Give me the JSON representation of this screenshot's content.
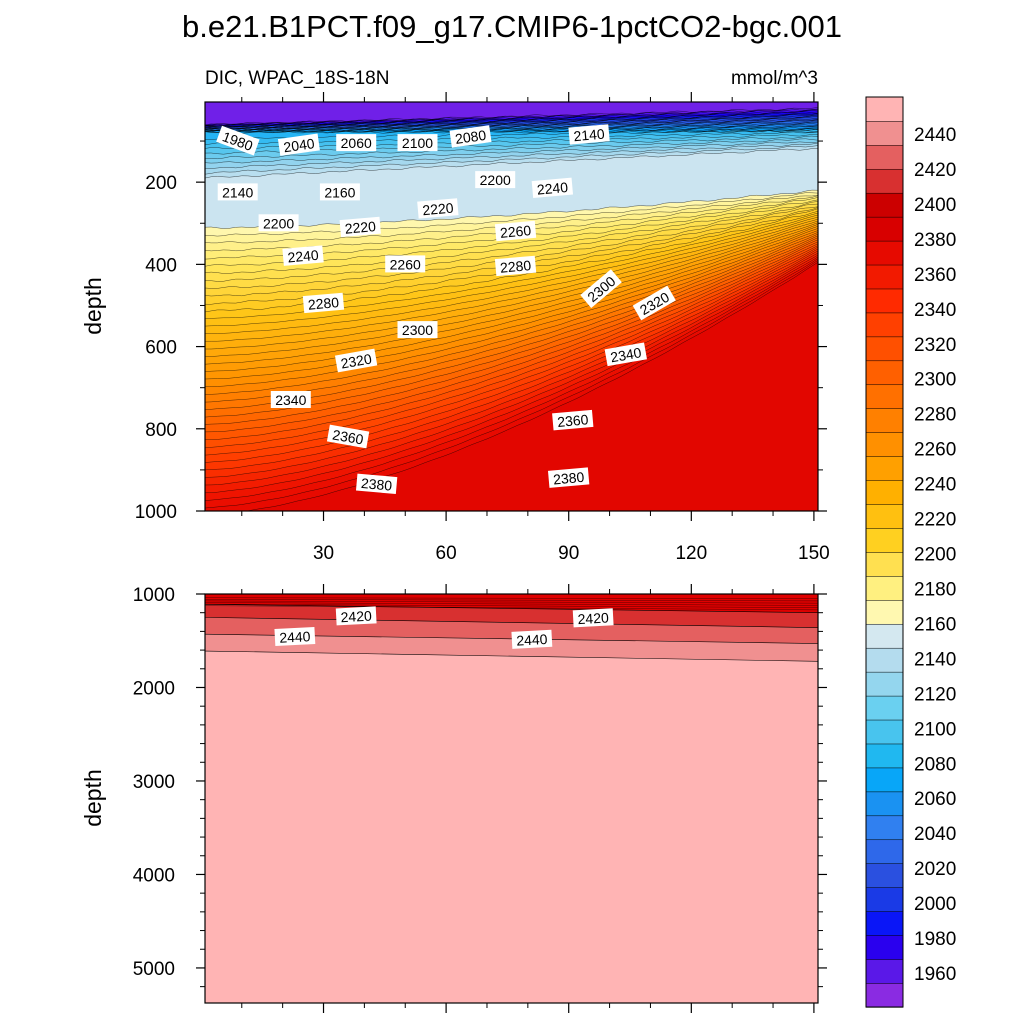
{
  "title": "b.e21.B1PCT.f09_g17.CMIP6-1pctCO2-bgc.001",
  "chart_data": {
    "type": "contour",
    "variable_label": "DIC, WPAC_18S-18N",
    "units": "mmol/m^3",
    "colorbar": {
      "levels": [
        1960,
        1980,
        2000,
        2020,
        2040,
        2060,
        2080,
        2100,
        2120,
        2140,
        2160,
        2180,
        2200,
        2220,
        2240,
        2260,
        2280,
        2300,
        2320,
        2340,
        2360,
        2380,
        2400,
        2420,
        2440
      ],
      "tick_labels": [
        "1960",
        "1980",
        "2000",
        "2020",
        "2040",
        "2060",
        "2080",
        "2100",
        "2120",
        "2140",
        "2160",
        "2180",
        "2200",
        "2220",
        "2240",
        "2260",
        "2280",
        "2300",
        "2320",
        "2340",
        "2360",
        "2380",
        "2400",
        "2420",
        "2440"
      ],
      "colors": [
        "#8a2be2",
        "#5a18e8",
        "#2a00ee",
        "#0a16f7",
        "#1a3ae6",
        "#2a50e0",
        "#2e68ea",
        "#3080f0",
        "#1a92f2",
        "#08a6f8",
        "#20b8f0",
        "#48c4ee",
        "#6ad0f0",
        "#94d6ee",
        "#b4dcee",
        "#d4e8f0",
        "#fff8b0",
        "#fff080",
        "#ffe050",
        "#ffd020",
        "#ffc010",
        "#ffb000",
        "#ffa000",
        "#ff9000",
        "#ff8000",
        "#ff7000",
        "#ff6000",
        "#ff5000",
        "#ff4000",
        "#ff2a00",
        "#f21a00",
        "#e60a00",
        "#d80000",
        "#cc0000",
        "#d83030",
        "#e46060",
        "#f09090",
        "#ffb4b4"
      ]
    },
    "top_panel": {
      "xlabel": "",
      "ylabel": "depth",
      "x_ticks": [
        30,
        60,
        90,
        120,
        150
      ],
      "x_tick_labels": [
        "30",
        "60",
        "90",
        "120",
        "150"
      ],
      "xlim": [
        1,
        151
      ],
      "y_ticks": [
        200,
        400,
        600,
        800,
        1000
      ],
      "y_tick_labels": [
        "200",
        "400",
        "600",
        "800",
        "1000"
      ],
      "ylim": [
        5,
        1000
      ],
      "contour_labels": [
        {
          "text": "1980",
          "x": 9,
          "depth": 100,
          "rot": 20
        },
        {
          "text": "2040",
          "x": 24,
          "depth": 110,
          "rot": -8
        },
        {
          "text": "2060",
          "x": 38,
          "depth": 105,
          "rot": 0
        },
        {
          "text": "2100",
          "x": 53,
          "depth": 105,
          "rot": 0
        },
        {
          "text": "2080",
          "x": 66,
          "depth": 90,
          "rot": -8
        },
        {
          "text": "2140",
          "x": 95,
          "depth": 85,
          "rot": -5
        },
        {
          "text": "2140",
          "x": 9,
          "depth": 225,
          "rot": 0
        },
        {
          "text": "2160",
          "x": 34,
          "depth": 225,
          "rot": 0
        },
        {
          "text": "2200",
          "x": 72,
          "depth": 195,
          "rot": 0
        },
        {
          "text": "2240",
          "x": 86,
          "depth": 215,
          "rot": -5
        },
        {
          "text": "2200",
          "x": 19,
          "depth": 300,
          "rot": 0
        },
        {
          "text": "2220",
          "x": 39,
          "depth": 310,
          "rot": -5
        },
        {
          "text": "2220",
          "x": 58,
          "depth": 265,
          "rot": -5
        },
        {
          "text": "2260",
          "x": 77,
          "depth": 320,
          "rot": -5
        },
        {
          "text": "2240",
          "x": 25,
          "depth": 380,
          "rot": -5
        },
        {
          "text": "2260",
          "x": 50,
          "depth": 400,
          "rot": 0
        },
        {
          "text": "2280",
          "x": 77,
          "depth": 405,
          "rot": -5
        },
        {
          "text": "2300",
          "x": 98,
          "depth": 460,
          "rot": -40
        },
        {
          "text": "2320",
          "x": 111,
          "depth": 495,
          "rot": -30
        },
        {
          "text": "2280",
          "x": 30,
          "depth": 495,
          "rot": -5
        },
        {
          "text": "2300",
          "x": 53,
          "depth": 560,
          "rot": 0
        },
        {
          "text": "2320",
          "x": 38,
          "depth": 635,
          "rot": -10
        },
        {
          "text": "2340",
          "x": 104,
          "depth": 620,
          "rot": -10
        },
        {
          "text": "2340",
          "x": 22,
          "depth": 730,
          "rot": 0
        },
        {
          "text": "2360",
          "x": 91,
          "depth": 780,
          "rot": -5
        },
        {
          "text": "2360",
          "x": 36,
          "depth": 820,
          "rot": 10
        },
        {
          "text": "2380",
          "x": 43,
          "depth": 935,
          "rot": 5
        },
        {
          "text": "2380",
          "x": 90,
          "depth": 920,
          "rot": -5
        }
      ]
    },
    "bottom_panel": {
      "xlabel": "",
      "ylabel": "depth",
      "y_ticks": [
        1000,
        2000,
        3000,
        4000,
        5000
      ],
      "y_tick_labels": [
        "1000",
        "2000",
        "3000",
        "4000",
        "5000"
      ],
      "ylim": [
        1000,
        5375
      ],
      "xlim": [
        1,
        151
      ],
      "bands": [
        {
          "level_low": 2400,
          "color": "#e00000",
          "top_depth_left": 1000,
          "top_depth_right": 1000
        },
        {
          "level_low": 2410,
          "color": "#d83030",
          "top_depth_left": 1110,
          "top_depth_right": 1200
        },
        {
          "level_low": 2420,
          "color": "#e46060",
          "top_depth_left": 1250,
          "top_depth_right": 1360
        },
        {
          "level_low": 2430,
          "color": "#f09090",
          "top_depth_left": 1430,
          "top_depth_right": 1530
        },
        {
          "level_low": 2440,
          "color": "#ffb4b4",
          "top_depth_left": 1610,
          "top_depth_right": 1720
        }
      ],
      "contour_labels": [
        {
          "text": "2420",
          "x": 38,
          "depth": 1240,
          "rot": -3
        },
        {
          "text": "2420",
          "x": 96,
          "depth": 1260,
          "rot": -3
        },
        {
          "text": "2440",
          "x": 23,
          "depth": 1460,
          "rot": -3
        },
        {
          "text": "2440",
          "x": 81,
          "depth": 1490,
          "rot": -3
        }
      ]
    }
  }
}
